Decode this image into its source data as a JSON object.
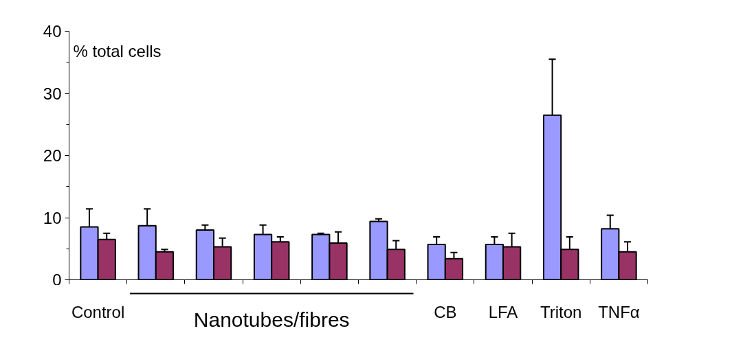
{
  "chart_data": {
    "type": "bar",
    "ylabel": "% total cells",
    "categories": [
      "Control",
      null,
      null,
      null,
      null,
      null,
      "CB",
      "LFA",
      "Triton",
      "TNFα"
    ],
    "series": [
      {
        "color": "#9999ff",
        "values": [
          8.5,
          8.7,
          8.0,
          7.3,
          7.3,
          9.4,
          5.7,
          5.7,
          26.5,
          8.2
        ],
        "errors": [
          [
            8.5,
            11.4
          ],
          [
            8.7,
            11.4
          ],
          [
            8.0,
            8.8
          ],
          [
            7.3,
            8.8
          ],
          [
            7.3,
            7.5
          ],
          [
            9.4,
            9.8
          ],
          [
            5.7,
            6.9
          ],
          [
            5.7,
            6.9
          ],
          [
            26.5,
            35.5
          ],
          [
            8.2,
            10.4
          ]
        ]
      },
      {
        "color": "#993366",
        "values": [
          6.5,
          4.5,
          5.3,
          6.1,
          5.9,
          4.9,
          3.4,
          5.3,
          4.9,
          4.5
        ],
        "errors": [
          [
            6.5,
            7.5
          ],
          [
            4.5,
            4.9
          ],
          [
            5.3,
            6.7
          ],
          [
            6.1,
            6.9
          ],
          [
            5.9,
            7.7
          ],
          [
            4.9,
            6.3
          ],
          [
            3.4,
            4.4
          ],
          [
            5.3,
            7.5
          ],
          [
            4.9,
            6.9
          ],
          [
            4.5,
            6.1
          ]
        ]
      }
    ],
    "annotations": [
      "Nanotubes/fibres"
    ],
    "ylim": [
      0,
      40
    ],
    "yticks": [
      0,
      10,
      20,
      30,
      40
    ],
    "grid": false
  }
}
